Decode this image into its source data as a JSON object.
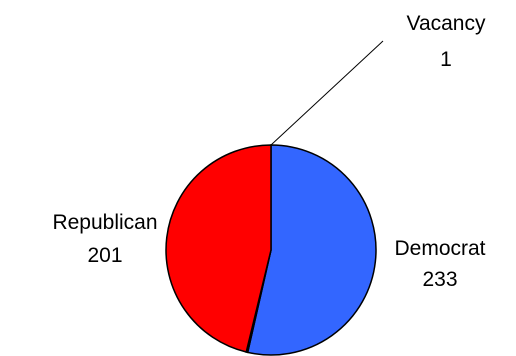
{
  "chart_data": {
    "type": "pie",
    "title": "",
    "slices": [
      {
        "name": "Democrat",
        "value": 233,
        "color": "#3366ff"
      },
      {
        "name": "Vacancy",
        "value": 1,
        "color": "#000000"
      },
      {
        "name": "Republican",
        "value": 201,
        "color": "#ff0000"
      }
    ],
    "start_angle_deg": 90,
    "direction": "clockwise",
    "legend": "none",
    "slice_outline_color": "#000000"
  }
}
